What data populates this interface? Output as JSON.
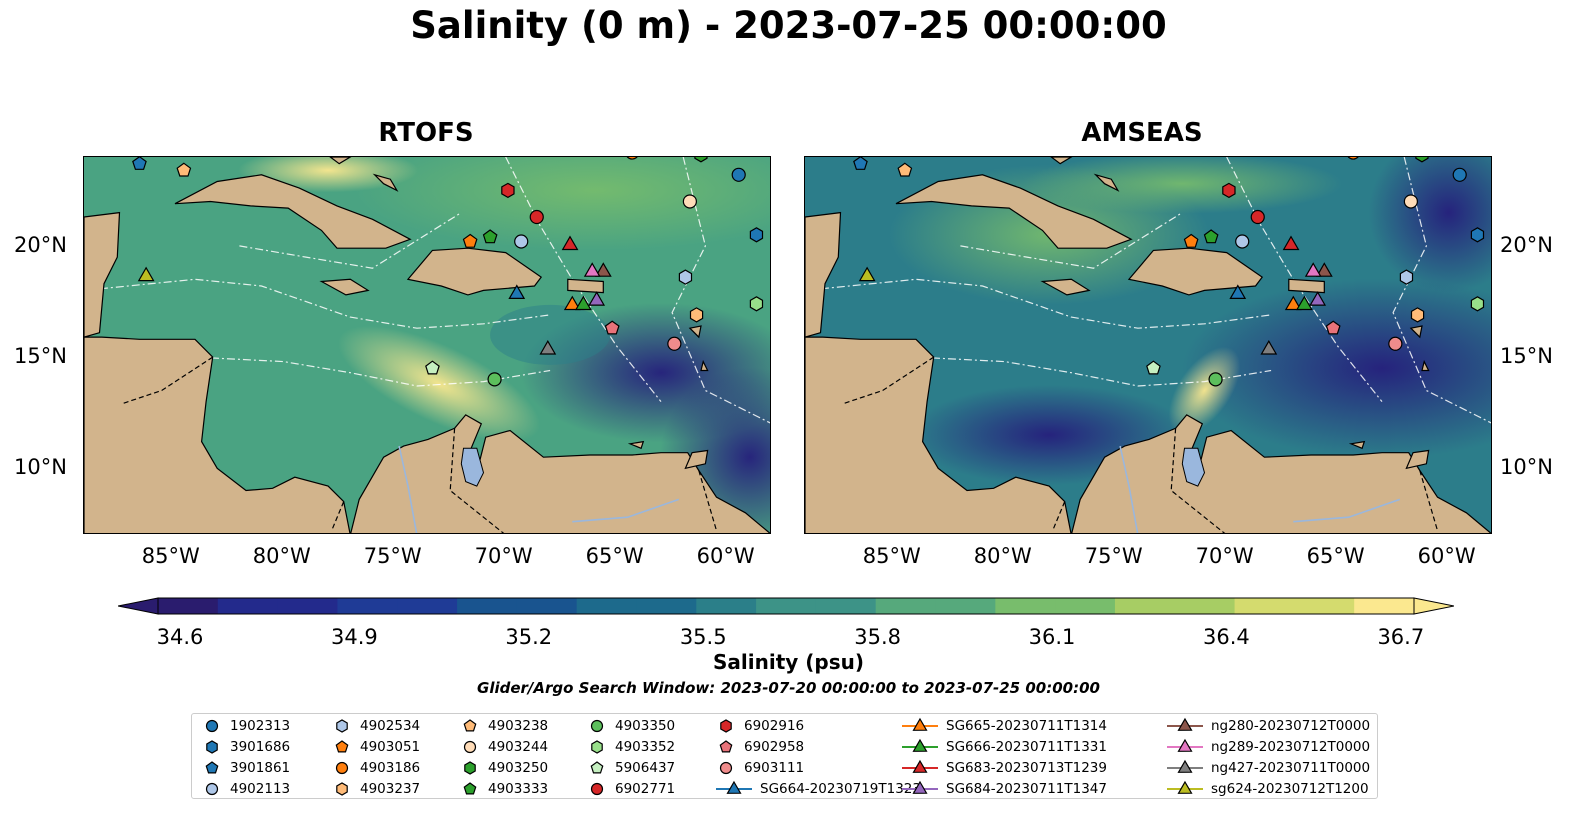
{
  "title": "Salinity (0 m) - 2023-07-25 00:00:00",
  "panels": [
    {
      "title": "RTOFS"
    },
    {
      "title": "AMSEAS"
    }
  ],
  "map_extent": {
    "lon": [
      -89,
      -58
    ],
    "lat": [
      7,
      24
    ]
  },
  "lon_ticks": [
    "85°W",
    "80°W",
    "75°W",
    "70°W",
    "65°W",
    "60°W"
  ],
  "lat_ticks": [
    "20°N",
    "15°N",
    "10°N"
  ],
  "colors": {
    "land": "#d2b48c",
    "lake": "#9ab7dd",
    "ocean_low": "#2a1c6e",
    "ocean_high": "#fde88c"
  },
  "colorbar": {
    "label": "Salinity (psu)",
    "ticks": [
      "34.6",
      "34.9",
      "35.2",
      "35.5",
      "35.8",
      "36.1",
      "36.4",
      "36.7"
    ],
    "range": [
      34.6,
      36.7
    ],
    "extend": "both",
    "colormap": "haline"
  },
  "search_window": "Glider/Argo Search Window: 2023-07-20 00:00:00 to 2023-07-25 00:00:00",
  "legend": [
    {
      "label": "1902313",
      "marker": "circle",
      "color": "#1f77b4"
    },
    {
      "label": "3901686",
      "marker": "hexagon",
      "color": "#1f77b4"
    },
    {
      "label": "3901861",
      "marker": "pentagon",
      "color": "#1f77b4"
    },
    {
      "label": "4902113",
      "marker": "circle",
      "color": "#aec7e8"
    },
    {
      "label": "4902534",
      "marker": "hexagon",
      "color": "#aec7e8"
    },
    {
      "label": "4903051",
      "marker": "pentagon",
      "color": "#ff7f0e"
    },
    {
      "label": "4903186",
      "marker": "circle",
      "color": "#ff7f0e"
    },
    {
      "label": "4903237",
      "marker": "hexagon",
      "color": "#ffbb78"
    },
    {
      "label": "4903238",
      "marker": "pentagon",
      "color": "#ffbb78"
    },
    {
      "label": "4903244",
      "marker": "circle",
      "color": "#ffdcb8"
    },
    {
      "label": "4903250",
      "marker": "hexagon",
      "color": "#2ca02c"
    },
    {
      "label": "4903333",
      "marker": "pentagon",
      "color": "#2ca02c"
    },
    {
      "label": "4903350",
      "marker": "circle",
      "color": "#5cbf5c"
    },
    {
      "label": "4903352",
      "marker": "hexagon",
      "color": "#98df8a"
    },
    {
      "label": "5906437",
      "marker": "pentagon",
      "color": "#c5efc0"
    },
    {
      "label": "6902771",
      "marker": "circle",
      "color": "#d62728"
    },
    {
      "label": "6902916",
      "marker": "hexagon",
      "color": "#d62728"
    },
    {
      "label": "6902958",
      "marker": "pentagon",
      "color": "#e8737a"
    },
    {
      "label": "6903111",
      "marker": "circle",
      "color": "#f08c8c"
    },
    {
      "label": "SG664-20230719T1323",
      "marker": "triangle",
      "color": "#1f77b4"
    },
    {
      "label": "SG665-20230711T1314",
      "marker": "triangle",
      "color": "#ff7f0e"
    },
    {
      "label": "SG666-20230711T1331",
      "marker": "triangle",
      "color": "#2ca02c"
    },
    {
      "label": "SG683-20230713T1239",
      "marker": "triangle",
      "color": "#d62728"
    },
    {
      "label": "SG684-20230711T1347",
      "marker": "triangle",
      "color": "#9467bd"
    },
    {
      "label": "ng280-20230712T0000",
      "marker": "triangle",
      "color": "#8c564b"
    },
    {
      "label": "ng289-20230712T0000",
      "marker": "triangle",
      "color": "#e377c2"
    },
    {
      "label": "ng427-20230711T0000",
      "marker": "triangle",
      "color": "#7f7f7f"
    },
    {
      "label": "sg624-20230712T1200",
      "marker": "triangle",
      "color": "#bcbd22"
    }
  ],
  "platforms": [
    {
      "id": "1902313",
      "lon": -59.5,
      "lat": 23.2
    },
    {
      "id": "3901686",
      "lon": -58.7,
      "lat": 20.5
    },
    {
      "id": "3901861",
      "lon": -86.5,
      "lat": 23.7
    },
    {
      "id": "4902113",
      "lon": -69.3,
      "lat": 20.2
    },
    {
      "id": "4902534",
      "lon": -61.9,
      "lat": 18.6
    },
    {
      "id": "4903051",
      "lon": -71.6,
      "lat": 20.2
    },
    {
      "id": "4903186",
      "lon": -64.3,
      "lat": 24.2
    },
    {
      "id": "4903237",
      "lon": -61.4,
      "lat": 16.9
    },
    {
      "id": "4903238",
      "lon": -84.5,
      "lat": 23.4
    },
    {
      "id": "4903244",
      "lon": -61.7,
      "lat": 22.0
    },
    {
      "id": "4903250",
      "lon": -61.2,
      "lat": 24.1
    },
    {
      "id": "4903333",
      "lon": -70.7,
      "lat": 20.4
    },
    {
      "id": "4903350",
      "lon": -70.5,
      "lat": 14.0
    },
    {
      "id": "4903352",
      "lon": -58.7,
      "lat": 17.4
    },
    {
      "id": "5906437",
      "lon": -73.3,
      "lat": 14.5
    },
    {
      "id": "6902771",
      "lon": -68.6,
      "lat": 21.3
    },
    {
      "id": "6902916",
      "lon": -69.9,
      "lat": 22.5
    },
    {
      "id": "6902958",
      "lon": -65.2,
      "lat": 16.3
    },
    {
      "id": "6903111",
      "lon": -62.4,
      "lat": 15.6
    },
    {
      "id": "SG664-20230719T1323",
      "lon": -69.5,
      "lat": 17.9
    },
    {
      "id": "SG665-20230711T1314",
      "lon": -67.0,
      "lat": 17.4
    },
    {
      "id": "SG666-20230711T1331",
      "lon": -66.5,
      "lat": 17.4
    },
    {
      "id": "SG683-20230713T1239",
      "lon": -67.1,
      "lat": 20.1
    },
    {
      "id": "SG684-20230711T1347",
      "lon": -65.9,
      "lat": 17.6
    },
    {
      "id": "ng280-20230712T0000",
      "lon": -65.6,
      "lat": 18.9
    },
    {
      "id": "ng289-20230712T0000",
      "lon": -66.1,
      "lat": 18.9
    },
    {
      "id": "ng427-20230711T0000",
      "lon": -68.1,
      "lat": 15.4
    },
    {
      "id": "sg624-20230712T1200",
      "lon": -86.2,
      "lat": 18.7
    }
  ]
}
